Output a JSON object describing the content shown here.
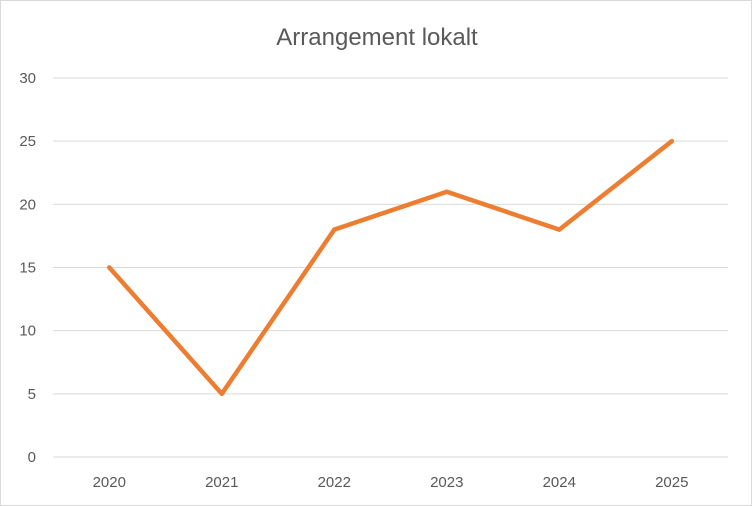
{
  "chart_data": {
    "type": "line",
    "title": "Arrangement lokalt",
    "xlabel": "",
    "ylabel": "",
    "categories": [
      "2020",
      "2021",
      "2022",
      "2023",
      "2024",
      "2025"
    ],
    "series": [
      {
        "values": [
          15,
          5,
          18,
          21,
          18,
          25
        ],
        "color": "#ED7D31"
      }
    ],
    "ylim": [
      0,
      30
    ],
    "yticks": [
      0,
      5,
      10,
      15,
      20,
      25,
      30
    ],
    "ytick_labels": [
      "0",
      "5",
      "10",
      "15",
      "20",
      "25",
      "30"
    ],
    "grid": true,
    "legend": "none"
  }
}
